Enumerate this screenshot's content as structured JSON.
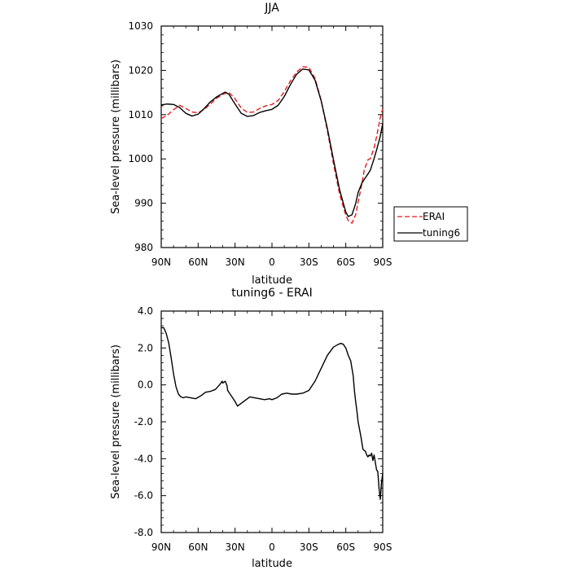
{
  "chart_data": [
    {
      "type": "line",
      "title": "JJA",
      "xlabel": "latitude",
      "ylabel": "Sea-level pressure (millibars)",
      "xlim": [
        90,
        -90
      ],
      "ylim": [
        980,
        1030
      ],
      "xticks": [
        90,
        60,
        30,
        0,
        -30,
        -60,
        -90
      ],
      "xticklabels": [
        "90N",
        "60N",
        "30N",
        "0",
        "30S",
        "60S",
        "90S"
      ],
      "yticks": [
        980,
        990,
        1000,
        1010,
        1020,
        1030
      ],
      "yticklabels": [
        "980",
        "990",
        "1000",
        "1010",
        "1020",
        "1030"
      ],
      "legend_position": "right",
      "series": [
        {
          "name": "ERAI",
          "color": "#e41a1c",
          "dash": "dashed",
          "x": [
            90,
            85,
            80,
            75,
            70,
            65,
            60,
            55,
            50,
            45,
            40,
            35,
            30,
            25,
            20,
            15,
            10,
            5,
            0,
            -5,
            -10,
            -15,
            -20,
            -25,
            -30,
            -35,
            -40,
            -45,
            -50,
            -55,
            -60,
            -62,
            -65,
            -68,
            -70,
            -73,
            -75,
            -78,
            -80,
            -83,
            -85,
            -88,
            -90
          ],
          "y": [
            1009.1,
            1009.9,
            1011.1,
            1012.1,
            1011.4,
            1010.6,
            1010.4,
            1011.2,
            1012.4,
            1013.7,
            1014.6,
            1015.0,
            1013.6,
            1011.5,
            1010.5,
            1010.6,
            1011.4,
            1012.0,
            1012.3,
            1013.2,
            1015.2,
            1017.6,
            1019.6,
            1020.8,
            1020.7,
            1018.2,
            1013.2,
            1006.4,
            998.9,
            992.0,
            987.3,
            986.1,
            985.5,
            987.4,
            990.2,
            994.3,
            997.5,
            999.8,
            1000.1,
            1002.5,
            1005.0,
            1009.3,
            1011.3
          ]
        },
        {
          "name": "tuning6",
          "color": "#000000",
          "dash": "solid",
          "x": [
            90,
            85,
            80,
            75,
            70,
            65,
            60,
            55,
            50,
            45,
            40,
            38,
            35,
            30,
            25,
            20,
            15,
            10,
            5,
            0,
            -5,
            -10,
            -15,
            -20,
            -25,
            -30,
            -35,
            -40,
            -45,
            -50,
            -55,
            -60,
            -62,
            -65,
            -68,
            -70,
            -73,
            -75,
            -78,
            -80,
            -83,
            -85,
            -88,
            -90
          ],
          "y": [
            1012.2,
            1012.4,
            1012.3,
            1011.6,
            1010.3,
            1009.7,
            1010.1,
            1011.4,
            1012.9,
            1014.0,
            1014.8,
            1015.1,
            1014.6,
            1012.4,
            1010.3,
            1009.6,
            1009.8,
            1010.5,
            1010.9,
            1011.2,
            1012.1,
            1014.1,
            1016.8,
            1019.1,
            1020.3,
            1020.1,
            1017.8,
            1013.1,
            1006.9,
            999.8,
            993.0,
            988.0,
            987.0,
            987.4,
            989.9,
            992.4,
            994.5,
            995.4,
            996.6,
            997.5,
            1000.1,
            1002.0,
            1005.1,
            1008.0
          ]
        }
      ]
    },
    {
      "type": "line",
      "title": "tuning6 - ERAI",
      "xlabel": "latitude",
      "ylabel": "Sea-level pressure (millibars)",
      "xlim": [
        90,
        -90
      ],
      "ylim": [
        -8,
        4
      ],
      "xticks": [
        90,
        60,
        30,
        0,
        -30,
        -60,
        -90
      ],
      "xticklabels": [
        "90N",
        "60N",
        "30N",
        "0",
        "30S",
        "60S",
        "90S"
      ],
      "yticks": [
        -8,
        -6,
        -4,
        -2,
        0,
        2,
        4
      ],
      "yticklabels": [
        "-8.0",
        "-6.0",
        "-4.0",
        "-2.0",
        "0.0",
        "2.0",
        "4.0"
      ],
      "series": [
        {
          "color": "#000000",
          "dash": "solid",
          "x": [
            90,
            88,
            86,
            84,
            82,
            80,
            78,
            76,
            74,
            72,
            70,
            66,
            62,
            58,
            54,
            50,
            46,
            42,
            40.5,
            40,
            39,
            38,
            36.5,
            36,
            34,
            32,
            30,
            28,
            26,
            22,
            18,
            14,
            10,
            6,
            2,
            0,
            -4,
            -8,
            -12,
            -16,
            -20,
            -25,
            -30,
            -35,
            -40,
            -45,
            -50,
            -54,
            -56,
            -58,
            -60,
            -62,
            -64,
            -66,
            -67,
            -68,
            -69,
            -70,
            -72,
            -74,
            -76,
            -77,
            -78,
            -79,
            -80,
            -81,
            -82,
            -83,
            -84,
            -85,
            -86,
            -87,
            -88,
            -89,
            -90
          ],
          "y": [
            3.1,
            3.1,
            2.8,
            2.3,
            1.5,
            0.6,
            -0.1,
            -0.5,
            -0.65,
            -0.7,
            -0.65,
            -0.7,
            -0.75,
            -0.6,
            -0.4,
            -0.35,
            -0.25,
            0.05,
            0.2,
            0.1,
            0.15,
            0.2,
            -0.05,
            -0.3,
            -0.5,
            -0.7,
            -0.9,
            -1.15,
            -1.05,
            -0.85,
            -0.65,
            -0.7,
            -0.75,
            -0.8,
            -0.75,
            -0.8,
            -0.7,
            -0.5,
            -0.45,
            -0.5,
            -0.5,
            -0.45,
            -0.3,
            0.2,
            0.9,
            1.6,
            2.05,
            2.2,
            2.25,
            2.2,
            2.0,
            1.6,
            1.3,
            0.5,
            -0.3,
            -0.9,
            -1.4,
            -2.0,
            -2.7,
            -3.5,
            -3.6,
            -3.8,
            -3.9,
            -3.8,
            -3.85,
            -3.7,
            -4.1,
            -3.8,
            -4.2,
            -4.6,
            -4.7,
            -5.6,
            -6.2,
            -5.3,
            -4.8
          ]
        }
      ]
    }
  ]
}
